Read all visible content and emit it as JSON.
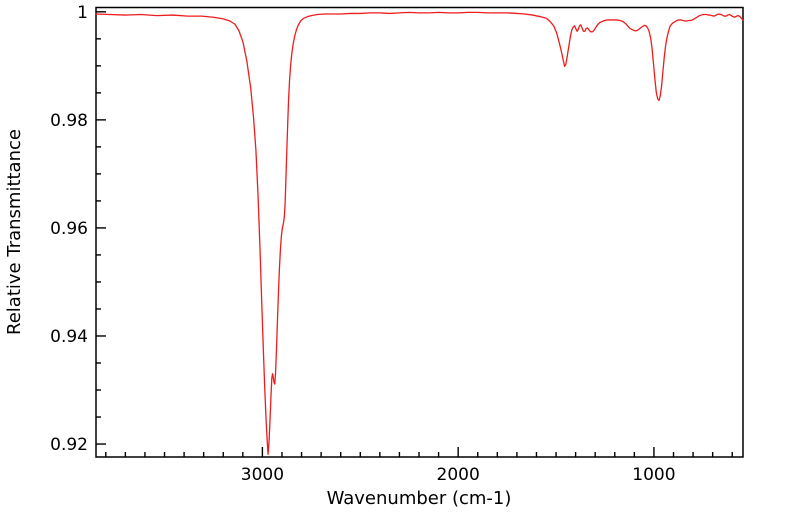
{
  "chart_data": {
    "type": "line",
    "title": "",
    "xlabel": "Wavenumber (cm-1)",
    "ylabel": "Relative Transmittance",
    "legend": "none",
    "grid": false,
    "background_color": "#ffffff",
    "axis_color": "#000000",
    "line_color": "#ee1c1c",
    "x_axis": {
      "min": 545,
      "max": 3850,
      "reversed": true,
      "major_ticks": [
        {
          "value": 3000,
          "label": "3000"
        },
        {
          "value": 2000,
          "label": "2000"
        },
        {
          "value": 1000,
          "label": "1000"
        }
      ],
      "minor_tick_step": 100
    },
    "y_axis": {
      "min": 0.9176,
      "max": 1.0008,
      "major_ticks": [
        {
          "value": 1.0,
          "label": "1"
        },
        {
          "value": 0.98,
          "label": "0.98"
        },
        {
          "value": 0.96,
          "label": "0.96"
        },
        {
          "value": 0.94,
          "label": "0.94"
        },
        {
          "value": 0.92,
          "label": "0.92"
        }
      ],
      "minor_tick_step": 0.005
    },
    "series": [
      {
        "name": "IR spectrum",
        "points": [
          [
            3850,
            0.9996
          ],
          [
            3780,
            0.9995
          ],
          [
            3700,
            0.9994
          ],
          [
            3620,
            0.9995
          ],
          [
            3540,
            0.9993
          ],
          [
            3460,
            0.9994
          ],
          [
            3380,
            0.9992
          ],
          [
            3310,
            0.9992
          ],
          [
            3250,
            0.999
          ],
          [
            3200,
            0.9987
          ],
          [
            3166,
            0.9983
          ],
          [
            3140,
            0.9977
          ],
          [
            3120,
            0.9965
          ],
          [
            3100,
            0.9945
          ],
          [
            3080,
            0.991
          ],
          [
            3060,
            0.986
          ],
          [
            3045,
            0.9803
          ],
          [
            3033,
            0.9743
          ],
          [
            3022,
            0.9658
          ],
          [
            3012,
            0.9558
          ],
          [
            3003,
            0.9458
          ],
          [
            2995,
            0.9373
          ],
          [
            2988,
            0.9303
          ],
          [
            2981,
            0.9243
          ],
          [
            2975,
            0.9203
          ],
          [
            2971,
            0.9181
          ],
          [
            2966,
            0.9205
          ],
          [
            2961,
            0.9245
          ],
          [
            2956,
            0.929
          ],
          [
            2952,
            0.9322
          ],
          [
            2948,
            0.933
          ],
          [
            2944,
            0.9322
          ],
          [
            2940,
            0.9313
          ],
          [
            2937,
            0.9311
          ],
          [
            2933,
            0.933
          ],
          [
            2928,
            0.9375
          ],
          [
            2923,
            0.943
          ],
          [
            2918,
            0.948
          ],
          [
            2913,
            0.9525
          ],
          [
            2908,
            0.956
          ],
          [
            2903,
            0.9585
          ],
          [
            2898,
            0.96
          ],
          [
            2893,
            0.9608
          ],
          [
            2888,
            0.962
          ],
          [
            2884,
            0.9645
          ],
          [
            2880,
            0.969
          ],
          [
            2876,
            0.9735
          ],
          [
            2871,
            0.979
          ],
          [
            2866,
            0.984
          ],
          [
            2861,
            0.9875
          ],
          [
            2856,
            0.99
          ],
          [
            2850,
            0.9922
          ],
          [
            2843,
            0.994
          ],
          [
            2835,
            0.9955
          ],
          [
            2826,
            0.9967
          ],
          [
            2816,
            0.9976
          ],
          [
            2805,
            0.9983
          ],
          [
            2790,
            0.9988
          ],
          [
            2770,
            0.9991
          ],
          [
            2750,
            0.9993
          ],
          [
            2720,
            0.9995
          ],
          [
            2680,
            0.9996
          ],
          [
            2640,
            0.9996
          ],
          [
            2600,
            0.9996
          ],
          [
            2550,
            0.9997
          ],
          [
            2500,
            0.9997
          ],
          [
            2450,
            0.9998
          ],
          [
            2400,
            0.9998
          ],
          [
            2350,
            0.9997
          ],
          [
            2300,
            0.9998
          ],
          [
            2250,
            0.9999
          ],
          [
            2200,
            0.9998
          ],
          [
            2150,
            0.9998
          ],
          [
            2100,
            0.9999
          ],
          [
            2050,
            0.9998
          ],
          [
            2000,
            0.9998
          ],
          [
            1950,
            0.9999
          ],
          [
            1900,
            0.9999
          ],
          [
            1850,
            0.9998
          ],
          [
            1800,
            0.9998
          ],
          [
            1750,
            0.9998
          ],
          [
            1700,
            0.9997
          ],
          [
            1660,
            0.9996
          ],
          [
            1620,
            0.9994
          ],
          [
            1580,
            0.9991
          ],
          [
            1550,
            0.9988
          ],
          [
            1530,
            0.9982
          ],
          [
            1512,
            0.9974
          ],
          [
            1498,
            0.9962
          ],
          [
            1485,
            0.9945
          ],
          [
            1473,
            0.9927
          ],
          [
            1463,
            0.991
          ],
          [
            1456,
            0.9899
          ],
          [
            1450,
            0.9903
          ],
          [
            1443,
            0.9917
          ],
          [
            1434,
            0.9938
          ],
          [
            1426,
            0.9956
          ],
          [
            1419,
            0.9967
          ],
          [
            1412,
            0.9972
          ],
          [
            1405,
            0.9974
          ],
          [
            1398,
            0.9968
          ],
          [
            1392,
            0.9964
          ],
          [
            1386,
            0.9968
          ],
          [
            1380,
            0.9974
          ],
          [
            1374,
            0.9976
          ],
          [
            1367,
            0.997
          ],
          [
            1360,
            0.9964
          ],
          [
            1353,
            0.9964
          ],
          [
            1346,
            0.9969
          ],
          [
            1339,
            0.997
          ],
          [
            1331,
            0.9966
          ],
          [
            1323,
            0.9963
          ],
          [
            1314,
            0.9963
          ],
          [
            1306,
            0.9966
          ],
          [
            1297,
            0.9971
          ],
          [
            1288,
            0.9976
          ],
          [
            1277,
            0.998
          ],
          [
            1265,
            0.9982
          ],
          [
            1252,
            0.9984
          ],
          [
            1238,
            0.9985
          ],
          [
            1222,
            0.9985
          ],
          [
            1206,
            0.9985
          ],
          [
            1190,
            0.9985
          ],
          [
            1174,
            0.9984
          ],
          [
            1158,
            0.9982
          ],
          [
            1144,
            0.9978
          ],
          [
            1132,
            0.9973
          ],
          [
            1121,
            0.9969
          ],
          [
            1110,
            0.9967
          ],
          [
            1099,
            0.9965
          ],
          [
            1089,
            0.9965
          ],
          [
            1079,
            0.9967
          ],
          [
            1069,
            0.997
          ],
          [
            1058,
            0.9973
          ],
          [
            1048,
            0.9975
          ],
          [
            1040,
            0.9974
          ],
          [
            1032,
            0.997
          ],
          [
            1024,
            0.9963
          ],
          [
            1016,
            0.995
          ],
          [
            1009,
            0.993
          ],
          [
            1002,
            0.9903
          ],
          [
            995,
            0.9875
          ],
          [
            988,
            0.9851
          ],
          [
            981,
            0.9839
          ],
          [
            974,
            0.9836
          ],
          [
            968,
            0.9844
          ],
          [
            961,
            0.9862
          ],
          [
            954,
            0.989
          ],
          [
            947,
            0.9917
          ],
          [
            940,
            0.9938
          ],
          [
            933,
            0.9953
          ],
          [
            926,
            0.9963
          ],
          [
            918,
            0.9973
          ],
          [
            910,
            0.9977
          ],
          [
            901,
            0.998
          ],
          [
            892,
            0.9982
          ],
          [
            882,
            0.9984
          ],
          [
            872,
            0.9985
          ],
          [
            862,
            0.9985
          ],
          [
            852,
            0.9984
          ],
          [
            842,
            0.9983
          ],
          [
            832,
            0.9983
          ],
          [
            822,
            0.9984
          ],
          [
            812,
            0.9984
          ],
          [
            803,
            0.9985
          ],
          [
            794,
            0.9987
          ],
          [
            785,
            0.9989
          ],
          [
            776,
            0.9991
          ],
          [
            767,
            0.9993
          ],
          [
            758,
            0.9994
          ],
          [
            749,
            0.9995
          ],
          [
            740,
            0.9995
          ],
          [
            731,
            0.9995
          ],
          [
            722,
            0.9994
          ],
          [
            713,
            0.9994
          ],
          [
            704,
            0.9993
          ],
          [
            695,
            0.9992
          ],
          [
            686,
            0.9993
          ],
          [
            677,
            0.9995
          ],
          [
            668,
            0.9996
          ],
          [
            659,
            0.9995
          ],
          [
            650,
            0.9994
          ],
          [
            641,
            0.9992
          ],
          [
            632,
            0.9992
          ],
          [
            623,
            0.9994
          ],
          [
            614,
            0.9995
          ],
          [
            605,
            0.9993
          ],
          [
            596,
            0.9991
          ],
          [
            587,
            0.999
          ],
          [
            578,
            0.9992
          ],
          [
            569,
            0.9993
          ],
          [
            560,
            0.9991
          ],
          [
            553,
            0.9988
          ],
          [
            548,
            0.9986
          ],
          [
            545,
            0.9985
          ]
        ]
      }
    ]
  }
}
